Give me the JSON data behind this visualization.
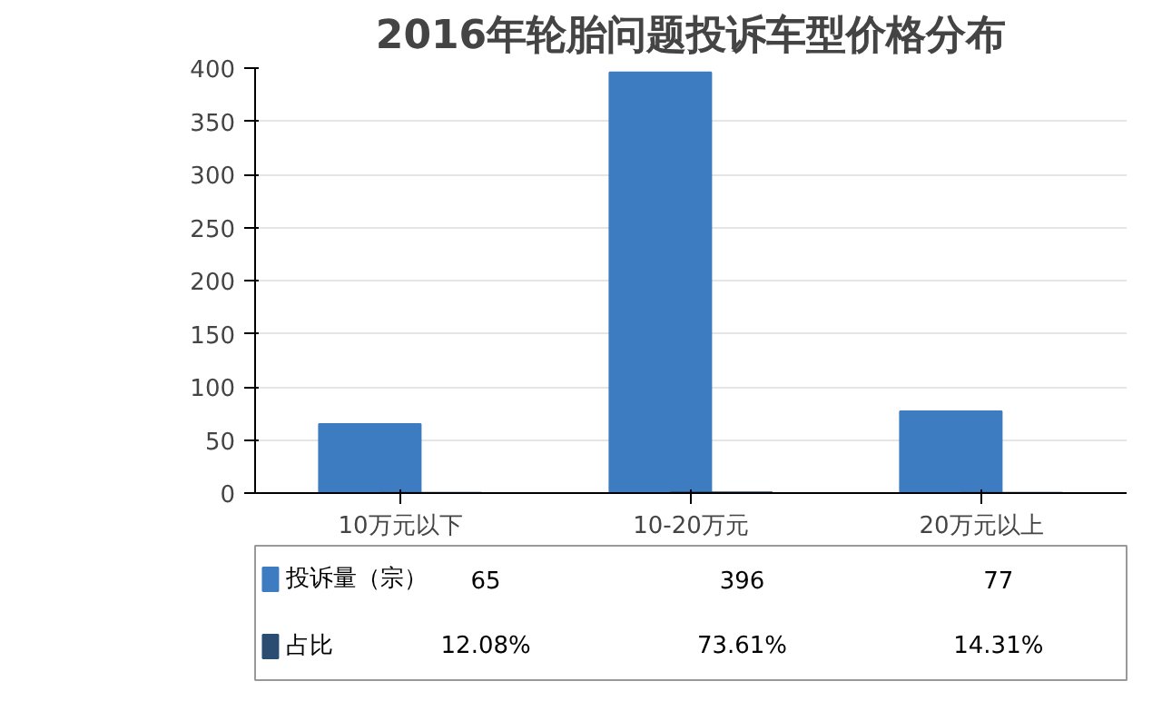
{
  "chart_data": {
    "type": "bar",
    "title": "2016年轮胎问题投诉车型价格分布",
    "categories": [
      "10万元以下",
      "10-20万元",
      "20万元以上"
    ],
    "series": [
      {
        "name": "投诉量（宗）",
        "color": "#3d7cc1",
        "values": [
          65,
          396,
          77
        ],
        "value_labels": [
          "65",
          "396",
          "77"
        ]
      },
      {
        "name": "占比",
        "color": "#2b4d72",
        "values": [
          0.1208,
          0.7361,
          0.1431
        ],
        "value_labels": [
          "12.08%",
          "73.61%",
          "14.31%"
        ]
      }
    ],
    "ylim": [
      0,
      400
    ],
    "yticks": [
      0,
      50,
      100,
      150,
      200,
      250,
      300,
      350,
      400
    ],
    "grid": "y",
    "legend": "bottom"
  }
}
